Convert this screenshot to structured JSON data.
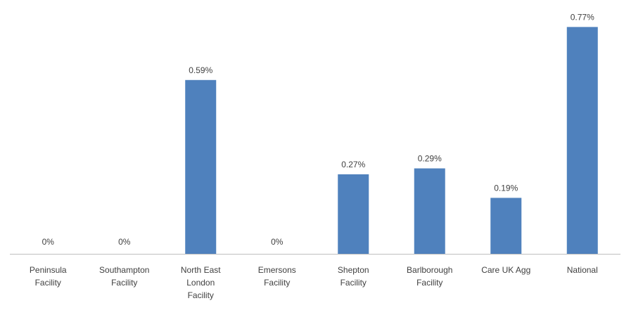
{
  "chart_data": {
    "type": "bar",
    "categories": [
      [
        "Peninsula",
        "Facility"
      ],
      [
        "Southampton",
        "Facility"
      ],
      [
        "North East",
        "London",
        "Facility"
      ],
      [
        "Emersons",
        "Facility"
      ],
      [
        "Shepton",
        "Facility"
      ],
      [
        "Barlborough",
        "Facility"
      ],
      [
        "Care UK Agg"
      ],
      [
        "National"
      ]
    ],
    "values": [
      0,
      0,
      0.59,
      0,
      0.27,
      0.29,
      0.19,
      0.77
    ],
    "data_labels": [
      "0%",
      "0%",
      "0.59%",
      "0%",
      "0.27%",
      "0.29%",
      "0.19%",
      "0.77%"
    ],
    "value_unit": "%",
    "ylim": [
      0,
      0.8
    ],
    "grid": false,
    "legend": "none",
    "bar_color": "#4f81bd",
    "axis_color": "#bfbfbf",
    "text_color": "#404040"
  }
}
